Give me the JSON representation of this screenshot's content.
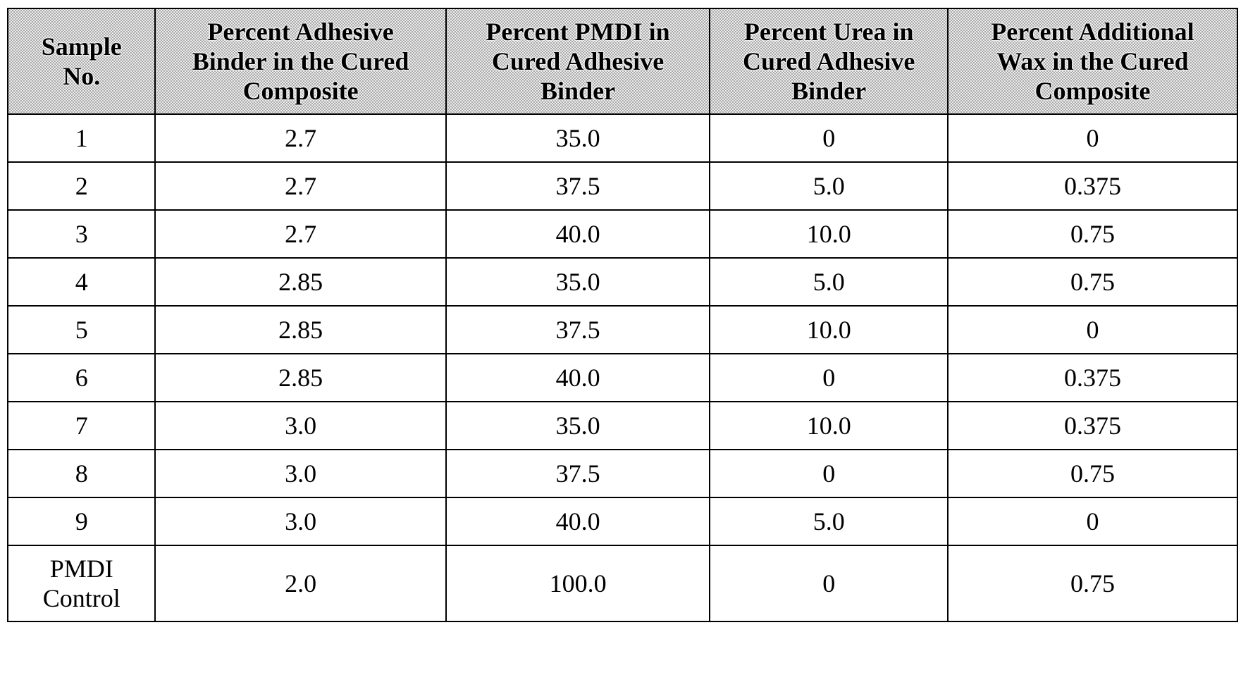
{
  "table": {
    "headers": [
      {
        "lines": [
          "Sample",
          "No."
        ]
      },
      {
        "lines": [
          "Percent Adhesive",
          "Binder in the Cured",
          "Composite"
        ]
      },
      {
        "lines": [
          "Percent PMDI in",
          "Cured Adhesive",
          "Binder"
        ]
      },
      {
        "lines": [
          "Percent Urea in",
          "Cured Adhesive",
          "Binder"
        ]
      },
      {
        "lines": [
          "Percent Additional",
          "Wax in the Cured",
          "Composite"
        ]
      }
    ],
    "rows": [
      {
        "sample": "1",
        "binder": "2.7",
        "pmdi": "35.0",
        "urea": "0",
        "wax": "0"
      },
      {
        "sample": "2",
        "binder": "2.7",
        "pmdi": "37.5",
        "urea": "5.0",
        "wax": "0.375"
      },
      {
        "sample": "3",
        "binder": "2.7",
        "pmdi": "40.0",
        "urea": "10.0",
        "wax": "0.75"
      },
      {
        "sample": "4",
        "binder": "2.85",
        "pmdi": "35.0",
        "urea": "5.0",
        "wax": "0.75"
      },
      {
        "sample": "5",
        "binder": "2.85",
        "pmdi": "37.5",
        "urea": "10.0",
        "wax": "0"
      },
      {
        "sample": "6",
        "binder": "2.85",
        "pmdi": "40.0",
        "urea": "0",
        "wax": "0.375"
      },
      {
        "sample": "7",
        "binder": "3.0",
        "pmdi": "35.0",
        "urea": "10.0",
        "wax": "0.375"
      },
      {
        "sample": "8",
        "binder": "3.0",
        "pmdi": "37.5",
        "urea": "0",
        "wax": "0.75"
      },
      {
        "sample": "9",
        "binder": "3.0",
        "pmdi": "40.0",
        "urea": "5.0",
        "wax": "0"
      }
    ],
    "control_row": {
      "sample_lines": [
        "PMDI",
        "Control"
      ],
      "binder": "2.0",
      "pmdi": "100.0",
      "urea": "0",
      "wax": "0.75"
    }
  }
}
